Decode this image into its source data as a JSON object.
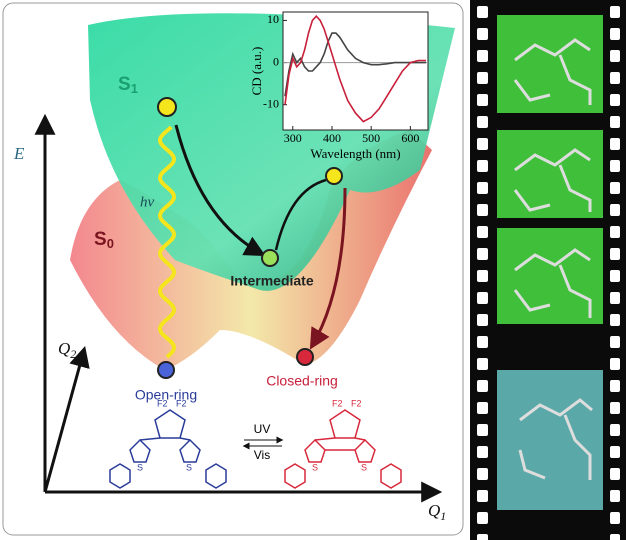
{
  "chart_data": {
    "type": "line",
    "xlabel": "Wavelength (nm)",
    "ylabel": "CD (a.u.)",
    "x": [
      280,
      290,
      300,
      310,
      320,
      330,
      340,
      350,
      360,
      370,
      380,
      390,
      400,
      410,
      420,
      440,
      460,
      480,
      500,
      520,
      540,
      560,
      580,
      600,
      620,
      640
    ],
    "series": [
      {
        "name": "black",
        "color": "#444",
        "values": [
          -8,
          -2,
          2,
          0,
          1,
          -1,
          -2,
          -2,
          -1,
          0,
          2,
          5,
          7,
          7,
          6,
          3,
          1,
          0,
          -0.5,
          -0.5,
          -0.3,
          0,
          0,
          0,
          0,
          0
        ]
      },
      {
        "name": "red",
        "color": "#c8203a",
        "values": [
          -10,
          -3,
          1,
          -1,
          0,
          3,
          7,
          10,
          11,
          10,
          8,
          5,
          2,
          -1,
          -4,
          -9,
          -12,
          -14,
          -13,
          -11,
          -8,
          -5,
          -2,
          0,
          0.5,
          0.5
        ]
      }
    ],
    "xlim": [
      275,
      645
    ],
    "ylim": [
      -16,
      12
    ],
    "xticks": [
      300,
      400,
      500,
      600
    ],
    "yticks": [
      -10,
      0,
      10
    ]
  },
  "axes": {
    "energy": "E",
    "q2": {
      "symbol": "Q",
      "subscript": "2"
    },
    "q1": {
      "symbol": "Q",
      "subscript": "1"
    }
  },
  "states": {
    "s1": {
      "symbol": "S",
      "subscript": "1"
    },
    "s0": {
      "symbol": "S",
      "subscript": "0"
    }
  },
  "labels": {
    "excitation": "hv",
    "intermediate": "Intermediate",
    "open": "Open-ring",
    "closed": "Closed-ring",
    "uv": "UV",
    "vis": "Vis"
  },
  "molecules": {
    "open": [
      "F2",
      "F2",
      "S",
      "S"
    ],
    "closed": [
      "F2",
      "F2",
      "S",
      "S"
    ]
  }
}
